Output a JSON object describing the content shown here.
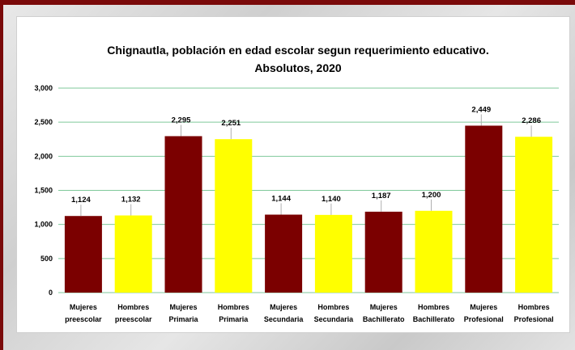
{
  "chart_data": {
    "type": "bar",
    "title": [
      "Chignautla, población en edad escolar segun requerimiento educativo.",
      "Absolutos, 2020"
    ],
    "xlabel": "",
    "ylabel": "",
    "ylim": [
      0,
      3000
    ],
    "yticks": [
      0,
      500,
      1000,
      1500,
      2000,
      2500,
      3000
    ],
    "ytick_labels": [
      "0",
      "500",
      "1,000",
      "1,500",
      "2,000",
      "2,500",
      "3,000"
    ],
    "grid": true,
    "categories": [
      [
        "Mujeres",
        "preescolar"
      ],
      [
        "Hombres",
        "preescolar"
      ],
      [
        "Mujeres",
        "Primaria"
      ],
      [
        "Hombres",
        "Primaria"
      ],
      [
        "Mujeres",
        "Secundaria"
      ],
      [
        "Hombres",
        "Secundaria"
      ],
      [
        "Mujeres",
        "Bachillerato"
      ],
      [
        "Hombres",
        "Bachillerato"
      ],
      [
        "Mujeres",
        "Profesional"
      ],
      [
        "Hombres",
        "Profesional"
      ]
    ],
    "values": [
      1124,
      1132,
      2295,
      2251,
      1144,
      1140,
      1187,
      1200,
      2449,
      2286
    ],
    "value_labels": [
      "1,124",
      "1,132",
      "2,295",
      "2,251",
      "1,144",
      "1,140",
      "1,187",
      "1,200",
      "2,449",
      "2,286"
    ],
    "colors": [
      "#7b0000",
      "#ffff00",
      "#7b0000",
      "#ffff00",
      "#7b0000",
      "#ffff00",
      "#7b0000",
      "#ffff00",
      "#7b0000",
      "#ffff00"
    ],
    "grid_color": "#7fc99b"
  }
}
